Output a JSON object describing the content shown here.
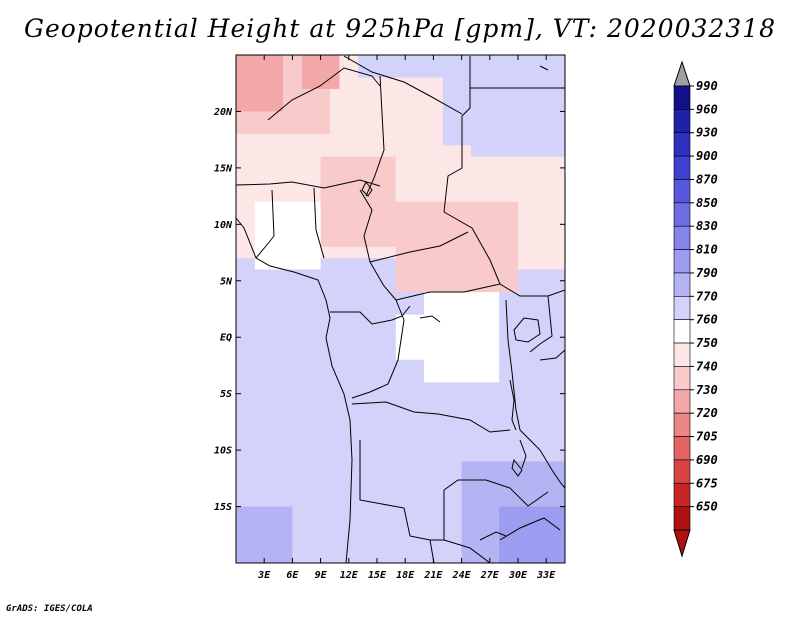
{
  "title": "Geopotential Height at 925hPa [gpm], VT: 2020032318",
  "credit": "GrADS: IGES/COLA",
  "chart_data": {
    "type": "heatmap",
    "title": "Geopotential Height at 925hPa [gpm], VT: 2020032318",
    "x_ticks": [
      "3E",
      "6E",
      "9E",
      "12E",
      "15E",
      "18E",
      "21E",
      "24E",
      "27E",
      "30E",
      "33E"
    ],
    "x_tick_values": [
      3,
      6,
      9,
      12,
      15,
      18,
      21,
      24,
      27,
      30,
      33
    ],
    "y_ticks": [
      "20N",
      "15N",
      "10N",
      "5N",
      "EQ",
      "5S",
      "10S",
      "15S"
    ],
    "y_tick_values": [
      20,
      15,
      10,
      5,
      0,
      -5,
      -10,
      -15
    ],
    "xlim": [
      0,
      35
    ],
    "ylim": [
      -20,
      25
    ],
    "colorbar": {
      "labels": [
        "990",
        "960",
        "930",
        "900",
        "870",
        "850",
        "830",
        "810",
        "790",
        "770",
        "760",
        "750",
        "740",
        "730",
        "720",
        "705",
        "690",
        "675",
        "650"
      ],
      "colors": [
        "#10108a",
        "#2020a8",
        "#3030c0",
        "#4040d0",
        "#5858dc",
        "#6e6ee4",
        "#8484ea",
        "#9c9cf0",
        "#b4b4f4",
        "#d2d2fa",
        "#ffffff",
        "#fde6e6",
        "#f9caca",
        "#f2a8a8",
        "#ea8686",
        "#e26464",
        "#d84444",
        "#c82626",
        "#b01010",
        "#a00000"
      ],
      "over_color": "#a0a0a0",
      "under_color": "#b01010"
    },
    "regions": [
      {
        "bounds": [
          0,
          35,
          -20,
          25
        ],
        "color": "#d2d2fa"
      },
      {
        "bounds": [
          0,
          13,
          7,
          25
        ],
        "color": "#fde6e6"
      },
      {
        "bounds": [
          13,
          25,
          7,
          23
        ],
        "color": "#fde6e6"
      },
      {
        "bounds": [
          25,
          35,
          6,
          16
        ],
        "color": "#fde6e6"
      },
      {
        "bounds": [
          0,
          10,
          18,
          25
        ],
        "color": "#f9caca"
      },
      {
        "bounds": [
          9,
          17,
          8,
          16
        ],
        "color": "#f9caca"
      },
      {
        "bounds": [
          17,
          30,
          4,
          12
        ],
        "color": "#f9caca"
      },
      {
        "bounds": [
          0,
          5,
          20,
          25
        ],
        "color": "#f2a8a8"
      },
      {
        "bounds": [
          7,
          11,
          22,
          25
        ],
        "color": "#f2a8a8"
      },
      {
        "bounds": [
          2,
          9,
          6,
          12
        ],
        "color": "#ffffff"
      },
      {
        "bounds": [
          20,
          28,
          -4,
          4
        ],
        "color": "#ffffff"
      },
      {
        "bounds": [
          17,
          21,
          -2,
          2
        ],
        "color": "#ffffff"
      },
      {
        "bounds": [
          22,
          35,
          17,
          25
        ],
        "color": "#d2d2fa"
      },
      {
        "bounds": [
          24,
          35,
          -20,
          -11
        ],
        "color": "#b4b4f4"
      },
      {
        "bounds": [
          28,
          35,
          -20,
          -15
        ],
        "color": "#9c9cf0"
      },
      {
        "bounds": [
          0,
          6,
          -20,
          -15
        ],
        "color": "#b4b4f4"
      }
    ]
  }
}
